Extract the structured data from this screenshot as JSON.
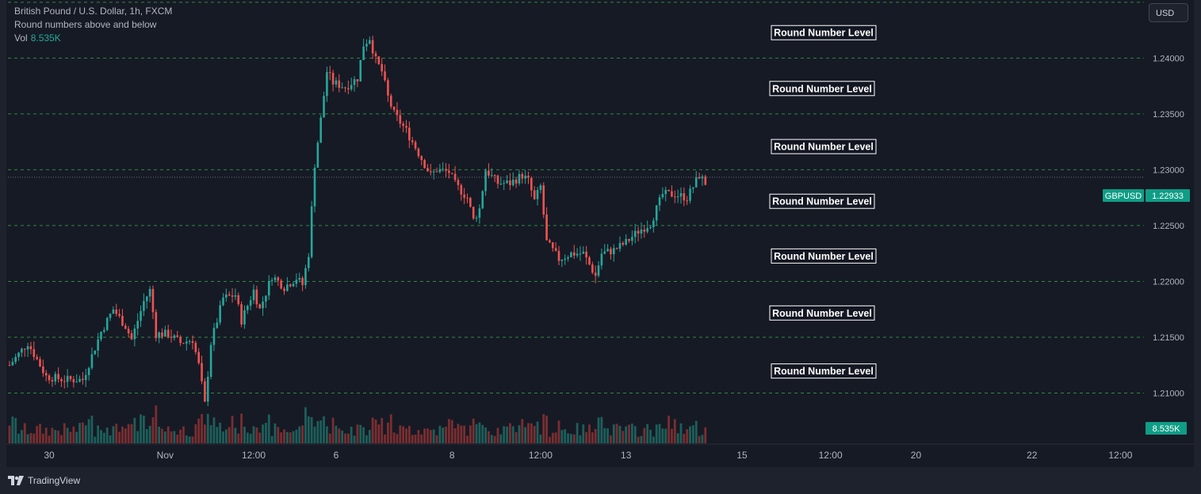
{
  "legend": {
    "title": "British Pound / U.S. Dollar, 1h, FXCM",
    "indicator": "Round numbers above and below",
    "vol_label": "Vol",
    "vol_value": "8.535K"
  },
  "currency_button": "USD",
  "footer": {
    "brand": "TradingView"
  },
  "colors": {
    "up": "#26a69a",
    "down": "#ef5350",
    "level_line": "#2e8b3e",
    "vol_up": "#1d5f5a",
    "vol_down": "#7a2e30",
    "badge": "#0f9d86"
  },
  "chart_data": {
    "type": "candlestick",
    "symbol": "GBPUSD",
    "last_price": 1.22933,
    "last_price_label": "1.22933",
    "volume_label": "8.535K",
    "ylim": [
      1.2055,
      1.2452
    ],
    "xlim": [
      0,
      232
    ],
    "y_ticks": [
      {
        "value": 1.24,
        "label": "1.24000"
      },
      {
        "value": 1.235,
        "label": "1.23500"
      },
      {
        "value": 1.23,
        "label": "1.23000"
      },
      {
        "value": 1.225,
        "label": "1.22500"
      },
      {
        "value": 1.22,
        "label": "1.22000"
      },
      {
        "value": 1.215,
        "label": "1.21500"
      },
      {
        "value": 1.21,
        "label": "1.21000"
      }
    ],
    "x_ticks": [
      {
        "index": 13,
        "label": "30"
      },
      {
        "index": 51,
        "label": "Nov"
      },
      {
        "index": 80,
        "label": "12:00"
      },
      {
        "index": 107,
        "label": "6"
      },
      {
        "index": 145,
        "label": "8"
      },
      {
        "index": 174,
        "label": "12:00"
      },
      {
        "index": 202,
        "label": "13"
      },
      {
        "index": 240,
        "label": "15"
      },
      {
        "index": 269,
        "label": "12:00"
      },
      {
        "index": 297,
        "label": "20"
      },
      {
        "index": 335,
        "label": "22"
      },
      {
        "index": 364,
        "label": "12:00"
      }
    ],
    "round_levels": [
      {
        "value": 1.245,
        "label": ""
      },
      {
        "value": 1.241,
        "label": "Round Number Level"
      },
      {
        "value": 1.236,
        "label": "Round Number Level"
      },
      {
        "value": 1.2308,
        "label": "Round Number Level"
      },
      {
        "value": 1.2259,
        "label": "Round Number Level"
      },
      {
        "value": 1.221,
        "label": "Round Number Level"
      },
      {
        "value": 1.2159,
        "label": "Round Number Level"
      },
      {
        "value": 1.2107,
        "label": "Round Number Level"
      }
    ],
    "level_values": [
      1.245,
      1.24,
      1.235,
      1.23,
      1.225,
      1.22,
      1.215,
      1.21
    ],
    "close_path": [
      [
        0,
        1.2125
      ],
      [
        6,
        1.2145
      ],
      [
        12,
        1.2115
      ],
      [
        18,
        1.2112
      ],
      [
        24,
        1.2112
      ],
      [
        30,
        1.2155
      ],
      [
        34,
        1.2175
      ],
      [
        38,
        1.216
      ],
      [
        40,
        1.2148
      ],
      [
        44,
        1.2182
      ],
      [
        46,
        1.2192
      ],
      [
        48,
        1.2153
      ],
      [
        52,
        1.2153
      ],
      [
        56,
        1.2145
      ],
      [
        60,
        1.2148
      ],
      [
        62,
        1.2125
      ],
      [
        64,
        1.209
      ],
      [
        66,
        1.2145
      ],
      [
        70,
        1.2185
      ],
      [
        74,
        1.2188
      ],
      [
        76,
        1.2165
      ],
      [
        80,
        1.2192
      ],
      [
        82,
        1.2175
      ],
      [
        86,
        1.2205
      ],
      [
        90,
        1.2195
      ],
      [
        94,
        1.2203
      ],
      [
        96,
        1.2197
      ],
      [
        98,
        1.2225
      ],
      [
        100,
        1.2305
      ],
      [
        102,
        1.2345
      ],
      [
        104,
        1.2388
      ],
      [
        106,
        1.2378
      ],
      [
        110,
        1.2374
      ],
      [
        114,
        1.2382
      ],
      [
        116,
        1.2412
      ],
      [
        118,
        1.2418
      ],
      [
        120,
        1.2398
      ],
      [
        122,
        1.2388
      ],
      [
        124,
        1.2365
      ],
      [
        126,
        1.235
      ],
      [
        130,
        1.2335
      ],
      [
        134,
        1.2315
      ],
      [
        138,
        1.2295
      ],
      [
        140,
        1.23
      ],
      [
        144,
        1.2298
      ],
      [
        146,
        1.2287
      ],
      [
        150,
        1.2275
      ],
      [
        152,
        1.2255
      ],
      [
        154,
        1.2265
      ],
      [
        156,
        1.23
      ],
      [
        160,
        1.2288
      ],
      [
        164,
        1.2288
      ],
      [
        168,
        1.2295
      ],
      [
        170,
        1.229
      ],
      [
        172,
        1.2272
      ],
      [
        174,
        1.2285
      ],
      [
        176,
        1.2235
      ],
      [
        180,
        1.222
      ],
      [
        184,
        1.2225
      ],
      [
        188,
        1.2225
      ],
      [
        190,
        1.2215
      ],
      [
        192,
        1.2205
      ],
      [
        194,
        1.2225
      ],
      [
        198,
        1.2228
      ],
      [
        202,
        1.2235
      ],
      [
        206,
        1.2245
      ],
      [
        210,
        1.2252
      ],
      [
        212,
        1.2265
      ],
      [
        214,
        1.2278
      ],
      [
        218,
        1.2278
      ],
      [
        222,
        1.2275
      ],
      [
        224,
        1.2285
      ],
      [
        226,
        1.2295
      ],
      [
        228,
        1.2288
      ]
    ]
  }
}
